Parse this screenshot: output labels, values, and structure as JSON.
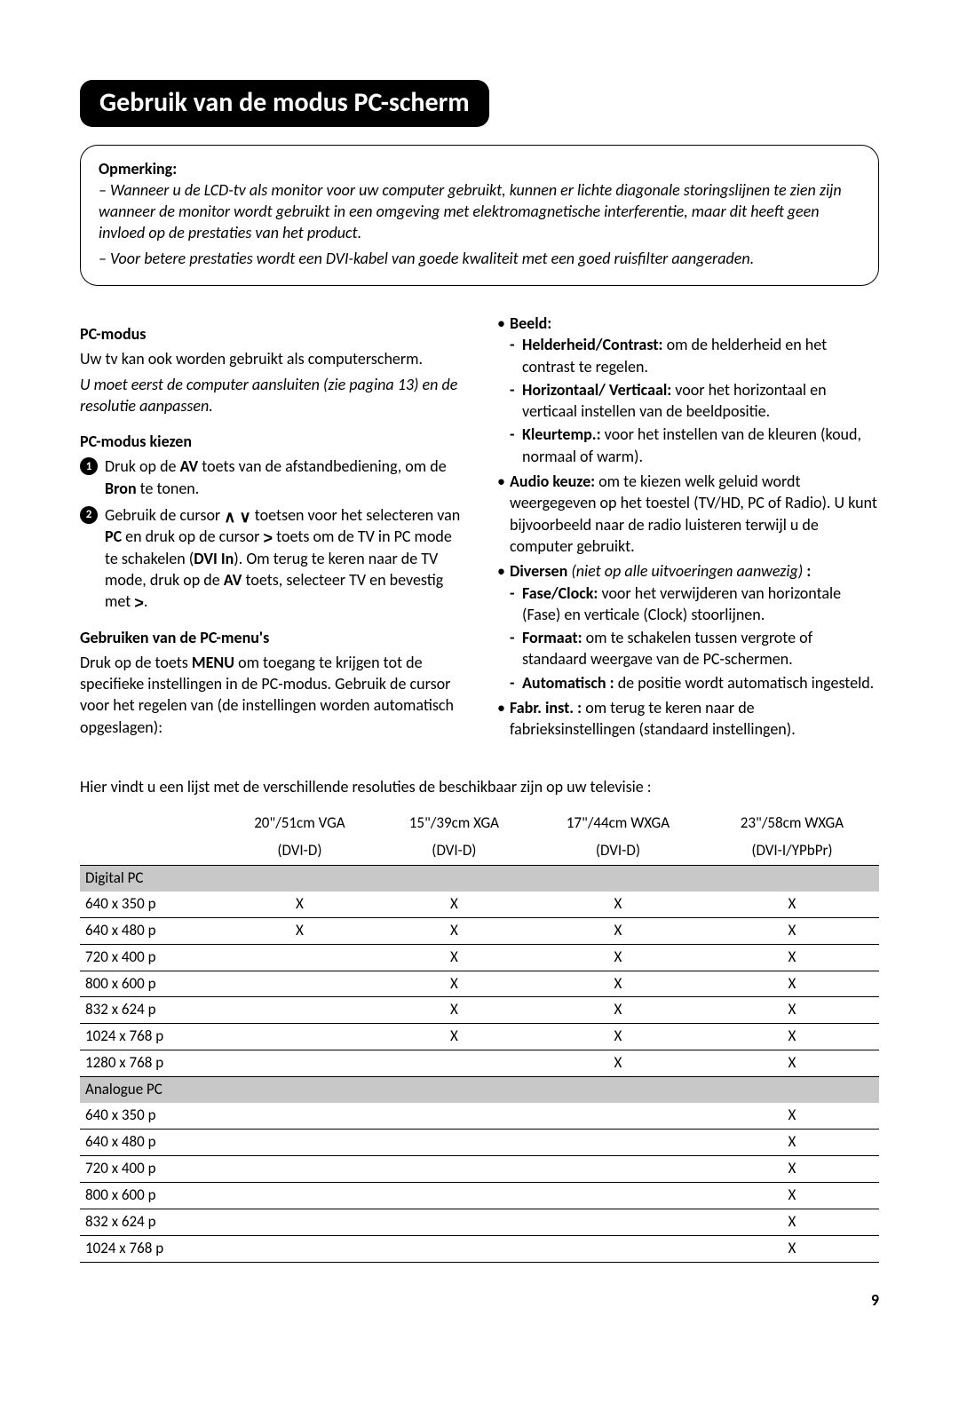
{
  "page": {
    "title": "Gebruik van de modus PC-scherm",
    "page_number": "9"
  },
  "note": {
    "label": "Opmerking:",
    "line1": "– Wanneer u de LCD-tv als monitor voor uw computer gebruikt, kunnen er lichte diagonale storingslijnen te zien zijn wanneer de monitor wordt gebruikt in een omgeving met elektromagnetische interferentie, maar dit heeft geen invloed op de prestaties van het product.",
    "line2": "– Voor betere prestaties wordt een DVI-kabel van goede kwaliteit met een goed ruisfilter aangeraden."
  },
  "left": {
    "h1": "PC-modus",
    "p1": "Uw tv kan ook worden gebruikt als computerscherm.",
    "p1_ital": "U moet eerst de computer aansluiten (zie pagina 13) en de resolutie aanpassen.",
    "h2": "PC-modus kiezen",
    "step1_a": "Druk op de ",
    "step1_b": "AV",
    "step1_c": " toets van de afstandbediening, om de ",
    "step1_d": "Bron",
    "step1_e": " te tonen.",
    "step2_a": "Gebruik de cursor ",
    "step2_b": " toetsen voor het selecteren van ",
    "step2_c": "PC",
    "step2_d": " en druk op de cursor ",
    "step2_e": " toets om de TV in PC mode te schakelen (",
    "step2_f": "DVI In",
    "step2_g": "). Om terug te keren naar de TV mode, druk op de ",
    "step2_h": "AV",
    "step2_i": " toets, selecteer TV en bevestig met ",
    "step2_j": ".",
    "h3": "Gebruiken van de PC-menu's",
    "p3_a": "Druk op de toets ",
    "p3_b": "MENU",
    "p3_c": " om toegang te krijgen tot de specifieke instellingen in de PC-modus. Gebruik de cursor voor het regelen van (de instellingen worden automatisch opgeslagen):"
  },
  "right": {
    "beeld_label": "Beeld:",
    "b1_label": "Helderheid/Contrast:",
    "b1_text": " om de helderheid en het contrast te regelen.",
    "b2_label": "Horizontaal/ Verticaal:",
    "b2_text": " voor het horizontaal en verticaal instellen van de beeldpositie.",
    "b3_label": "Kleurtemp.:",
    "b3_text": " voor het instellen van de kleuren (koud, normaal of warm).",
    "audio_label": "Audio keuze:",
    "audio_text": " om te kiezen welk geluid wordt weergegeven op het toestel (TV/HD, PC of Radio). U kunt bijvoorbeeld naar de radio luisteren terwijl u de computer gebruikt.",
    "div_label": "Diversen",
    "div_ital": " (niet op alle uitvoeringen aanwezig) ",
    "div_colon": ":",
    "d1_label": "Fase/Clock:",
    "d1_text": " voor het verwijderen van horizontale (Fase) en verticale (Clock) stoorlijnen.",
    "d2_label": "Formaat:",
    "d2_text": " om te schakelen tussen vergrote of standaard weergave van de PC-schermen.",
    "d3_label": "Automatisch :",
    "d3_text": " de positie wordt automatisch ingesteld.",
    "fabr_label": "Fabr. inst. :",
    "fabr_text": " om terug te keren naar de fabrieksinstellingen (standaard instellingen)."
  },
  "table": {
    "intro": "Hier vindt u een lijst met de verschillende resoluties de beschikbaar zijn op uw televisie :",
    "columns": [
      {
        "top": "20\"/51cm VGA",
        "bottom": "(DVI-D)"
      },
      {
        "top": "15\"/39cm XGA",
        "bottom": "(DVI-D)"
      },
      {
        "top": "17\"/44cm WXGA",
        "bottom": "(DVI-D)"
      },
      {
        "top": "23\"/58cm WXGA",
        "bottom": "(DVI-I/YPbPr)"
      }
    ],
    "section1": "Digital PC",
    "rows1": [
      {
        "label": "640 x 350 p",
        "cells": [
          "X",
          "X",
          "X",
          "X"
        ]
      },
      {
        "label": "640 x 480 p",
        "cells": [
          "X",
          "X",
          "X",
          "X"
        ]
      },
      {
        "label": "720 x 400 p",
        "cells": [
          "",
          "X",
          "X",
          "X"
        ]
      },
      {
        "label": "800 x 600 p",
        "cells": [
          "",
          "X",
          "X",
          "X"
        ]
      },
      {
        "label": "832 x 624 p",
        "cells": [
          "",
          "X",
          "X",
          "X"
        ]
      },
      {
        "label": "1024 x 768 p",
        "cells": [
          "",
          "X",
          "X",
          "X"
        ]
      },
      {
        "label": "1280 x 768 p",
        "cells": [
          "",
          "",
          "X",
          "X"
        ]
      }
    ],
    "section2": "Analogue PC",
    "rows2": [
      {
        "label": "640 x 350 p",
        "cells": [
          "",
          "",
          "",
          "X"
        ]
      },
      {
        "label": "640 x 480 p",
        "cells": [
          "",
          "",
          "",
          "X"
        ]
      },
      {
        "label": "720 x 400 p",
        "cells": [
          "",
          "",
          "",
          "X"
        ]
      },
      {
        "label": "800 x 600 p",
        "cells": [
          "",
          "",
          "",
          "X"
        ]
      },
      {
        "label": "832 x 624 p",
        "cells": [
          "",
          "",
          "",
          "X"
        ]
      },
      {
        "label": "1024 x 768 p",
        "cells": [
          "",
          "",
          "",
          "X"
        ]
      }
    ]
  },
  "glyphs": {
    "up": "∧",
    "down": "∨",
    "right": ">"
  }
}
